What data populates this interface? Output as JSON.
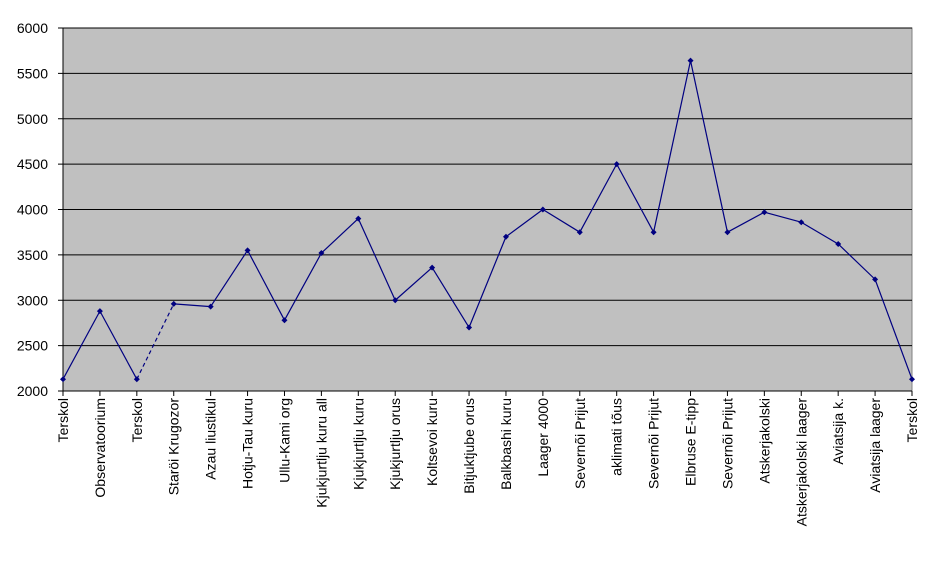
{
  "chart_data": {
    "type": "line",
    "categories": [
      "Terskol",
      "Observatoorium",
      "Terskol",
      "Staröi Krugozor",
      "Azau liustikul",
      "Hotju-Tau kuru",
      "Ullu-Kami org",
      "Kjukjurtlju kuru all",
      "Kjukjurtlju kuru",
      "Kjukjurtlju orus",
      "Koltsevoi kuru",
      "Bitjuktjube orus",
      "Balkbashi kuru",
      "Laager 4000",
      "Severnõi Prijut",
      "aklimati tõus",
      "Severnõi Prijut",
      "Elbruse E-tipp",
      "Severnõi Prijut",
      "Atskerjakolski",
      "Atskerjakolski laager",
      "Aviatsija k.",
      "Aviatsija laager",
      "Terskol"
    ],
    "values": [
      2130,
      2880,
      2130,
      2960,
      2930,
      3550,
      2780,
      3520,
      3900,
      3000,
      3360,
      2700,
      3700,
      4000,
      3750,
      4500,
      3750,
      5640,
      3750,
      3970,
      3860,
      3620,
      3230,
      2130
    ],
    "color": "#000080",
    "dashed_segments": [
      2
    ],
    "ylim": [
      2000,
      6000
    ],
    "yticks": [
      2000,
      2500,
      3000,
      3500,
      4000,
      4500,
      5000,
      5500,
      6000
    ],
    "grid": true,
    "plot_background": "#c0c0c0"
  }
}
